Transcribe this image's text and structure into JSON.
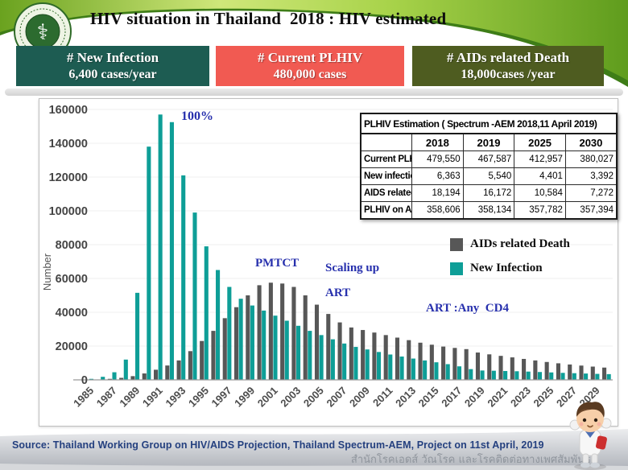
{
  "slide": {
    "title": "HIV situation in Thailand  2018 : HIV estimated",
    "logo_name": "ministry-of-public-health-thailand-seal"
  },
  "stat_boxes": [
    {
      "line1": "# New Infection",
      "line2": "6,400 cases/year",
      "color": "#1d5c52"
    },
    {
      "line1": "# Current PLHIV",
      "line2": "480,000 cases",
      "color": "#f15a52"
    },
    {
      "line1": "# AIDs related Death",
      "line2": "18,000cases /year",
      "color": "#4e5c20"
    }
  ],
  "table": {
    "title": "PLHIV  Estimation ( Spectrum -AEM 2018,11 April 2019)",
    "col_headers": [
      "",
      "2018",
      "2019",
      "2025",
      "2030"
    ],
    "rows": [
      {
        "label": "Current PLHIV",
        "values": [
          "479,550",
          "467,587",
          "412,957",
          "380,027"
        ]
      },
      {
        "label": "New infections",
        "values": [
          "6,363",
          "5,540",
          "4,401",
          "3,392"
        ]
      },
      {
        "label": "AIDS related Death",
        "values": [
          "18,194",
          "16,172",
          "10,584",
          "7,272"
        ]
      },
      {
        "label": "PLHIV on ART",
        "values": [
          "358,606",
          "358,134",
          "357,782",
          "357,394"
        ]
      }
    ]
  },
  "chart_data": {
    "type": "bar",
    "title": "",
    "xlabel": "",
    "ylabel": "Number",
    "ylim": [
      0,
      160000
    ],
    "ytick_step": 20000,
    "ytick_labels": [
      "0",
      "20000",
      "40000",
      "60000",
      "80000",
      "100000",
      "120000",
      "140000",
      "160000"
    ],
    "grid": "faint-horizontal",
    "legend_position": "middle-right",
    "x": [
      1985,
      1986,
      1987,
      1988,
      1989,
      1990,
      1991,
      1992,
      1993,
      1994,
      1995,
      1996,
      1997,
      1998,
      1999,
      2000,
      2001,
      2002,
      2003,
      2004,
      2005,
      2006,
      2007,
      2008,
      2009,
      2010,
      2011,
      2012,
      2013,
      2014,
      2015,
      2016,
      2017,
      2018,
      2019,
      2020,
      2021,
      2022,
      2023,
      2024,
      2025,
      2026,
      2027,
      2028,
      2029,
      2030
    ],
    "xtick_labels": [
      "1985",
      "1987",
      "1989",
      "1991",
      "1993",
      "1995",
      "1997",
      "1999",
      "2001",
      "2003",
      "2005",
      "2007",
      "2009",
      "2011",
      "2013",
      "2015",
      "2017",
      "2019",
      "2021",
      "2023",
      "2025",
      "2027",
      "2029"
    ],
    "series": [
      {
        "name": "AIDs related Death",
        "color": "#575757",
        "values": [
          100,
          250,
          600,
          1200,
          2200,
          3800,
          6000,
          8500,
          11500,
          17000,
          23000,
          29000,
          36500,
          43000,
          50000,
          56000,
          57500,
          57000,
          55000,
          50000,
          44500,
          39000,
          34000,
          31000,
          29500,
          28000,
          26500,
          25000,
          23500,
          22000,
          20800,
          19700,
          18900,
          18194,
          16172,
          15100,
          14200,
          13300,
          12400,
          11500,
          10584,
          9800,
          9100,
          8450,
          7850,
          7272
        ]
      },
      {
        "name": "New Infection",
        "color": "#0e9e97",
        "values": [
          600,
          1800,
          4500,
          12000,
          51500,
          138000,
          157000,
          152500,
          121000,
          99000,
          79000,
          65000,
          55000,
          48000,
          44000,
          41000,
          38000,
          35000,
          32000,
          29000,
          26500,
          24000,
          21500,
          19500,
          18000,
          16500,
          15000,
          13800,
          12600,
          11500,
          10400,
          9300,
          8000,
          6363,
          5540,
          5400,
          5250,
          5100,
          4900,
          4650,
          4401,
          4150,
          3950,
          3750,
          3550,
          3392
        ]
      }
    ],
    "annotations": [
      {
        "text": "100%"
      },
      {
        "text": "PMTCT"
      },
      {
        "text": "Scaling up"
      },
      {
        "text": "ART"
      },
      {
        "text": "ART :Any  CD4"
      }
    ]
  },
  "footer": {
    "source": "Source: Thailand Working Group on HIV/AIDS Projection, Thailand Spectrum-AEM, Project on 11st April, 2019",
    "thai_credit": "สำนักโรคเอดส์ วัณโรค และโรคติดต่อทางเพศสัมพันธ์"
  }
}
